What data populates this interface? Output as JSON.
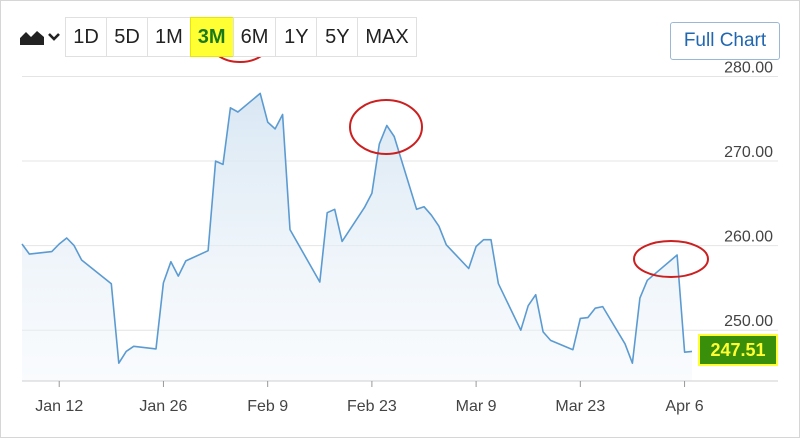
{
  "toolbar": {
    "chart_type_icon": "area-chart-icon",
    "dropdown_icon": "chevron-down-icon",
    "ranges": [
      "1D",
      "5D",
      "1M",
      "3M",
      "6M",
      "1Y",
      "5Y",
      "MAX"
    ],
    "active_range": "3M",
    "full_chart_label": "Full Chart"
  },
  "current_price": "247.51",
  "colors": {
    "line": "#5b9bd1",
    "area_top": "#d7e6f3",
    "grid": "#e4e4e4",
    "active_range_bg": "#ffff33",
    "price_tag_bg": "#3a8f0a",
    "annotation_circle": "#cc1f1f"
  },
  "chart_data": {
    "type": "area",
    "title": "",
    "xlabel": "",
    "ylabel": "",
    "ylim": [
      244,
      281
    ],
    "y_ticks": [
      "280.00",
      "270.00",
      "260.00",
      "250.00"
    ],
    "x_ticks": [
      "Jan 12",
      "Jan 26",
      "Feb 9",
      "Feb 23",
      "Mar 9",
      "Mar 23",
      "Apr 6"
    ],
    "grid": true,
    "y_axis_side": "right",
    "annotations": [
      {
        "type": "circle",
        "target": "range-button-3M"
      },
      {
        "type": "circle",
        "target": "peak-Feb-25"
      },
      {
        "type": "circle",
        "target": "peak-Apr-6"
      }
    ],
    "series": [
      {
        "x": [
          "2021-01-07",
          "2021-01-08",
          "2021-01-11",
          "2021-01-12",
          "2021-01-13",
          "2021-01-14",
          "2021-01-15",
          "2021-01-19",
          "2021-01-20",
          "2021-01-21",
          "2021-01-22",
          "2021-01-25",
          "2021-01-26",
          "2021-01-27",
          "2021-01-28",
          "2021-01-29",
          "2021-02-01",
          "2021-02-02",
          "2021-02-03",
          "2021-02-04",
          "2021-02-05",
          "2021-02-08",
          "2021-02-09",
          "2021-02-10",
          "2021-02-11",
          "2021-02-12",
          "2021-02-16",
          "2021-02-17",
          "2021-02-18",
          "2021-02-19",
          "2021-02-22",
          "2021-02-23",
          "2021-02-24",
          "2021-02-25",
          "2021-02-26",
          "2021-03-01",
          "2021-03-02",
          "2021-03-03",
          "2021-03-04",
          "2021-03-05",
          "2021-03-08",
          "2021-03-09",
          "2021-03-10",
          "2021-03-11",
          "2021-03-12",
          "2021-03-15",
          "2021-03-16",
          "2021-03-17",
          "2021-03-18",
          "2021-03-19",
          "2021-03-22",
          "2021-03-23",
          "2021-03-24",
          "2021-03-25",
          "2021-03-26",
          "2021-03-29",
          "2021-03-30",
          "2021-03-31",
          "2021-04-01",
          "2021-04-05",
          "2021-04-06",
          "2021-04-07"
        ],
        "values": [
          260.2,
          259.0,
          259.3,
          260.2,
          260.9,
          260.0,
          258.3,
          255.5,
          246.1,
          247.5,
          248.1,
          247.8,
          255.6,
          258.1,
          256.4,
          258.2,
          259.4,
          270.0,
          269.6,
          276.3,
          275.8,
          278.0,
          274.6,
          273.8,
          275.5,
          261.9,
          255.7,
          263.9,
          264.3,
          260.5,
          264.5,
          266.2,
          272.0,
          274.2,
          272.9,
          264.3,
          264.6,
          263.6,
          262.3,
          260.1,
          257.3,
          259.9,
          260.7,
          260.7,
          255.5,
          250.0,
          252.9,
          254.2,
          249.8,
          248.8,
          247.7,
          251.4,
          251.5,
          252.6,
          252.8,
          248.4,
          246.1,
          253.8,
          255.9,
          258.9,
          247.4,
          247.5
        ]
      }
    ]
  }
}
